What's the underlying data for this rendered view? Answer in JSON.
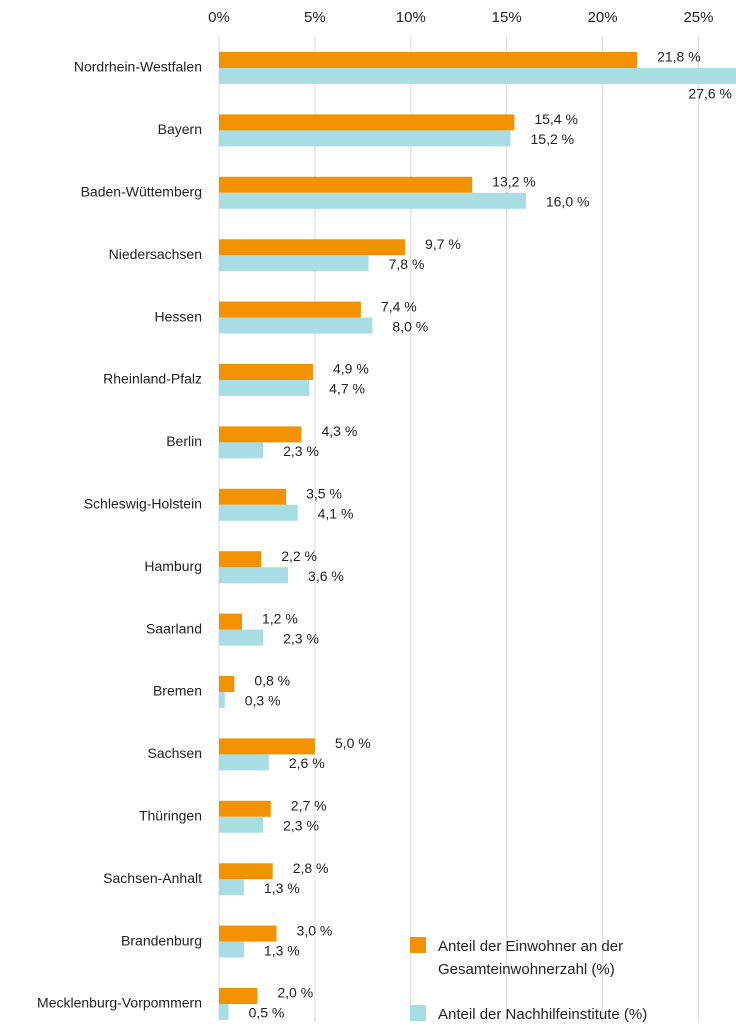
{
  "chart_data": {
    "type": "hbar",
    "categories": [
      "Nordrhein-Westfalen",
      "Bayern",
      "Baden-Wüttemberg",
      "Niedersachsen",
      "Hessen",
      "Rheinland-Pfalz",
      "Berlin",
      "Schleswig-Holstein",
      "Hamburg",
      "Saarland",
      "Bremen",
      "Sachsen",
      "Thüringen",
      "Sachsen-Anhalt",
      "Brandenburg",
      "Mecklenburg-Vorpommern"
    ],
    "series": [
      {
        "name": "Anteil der Einwohner an der Gesamteinwohnerzahl (%)",
        "color": "#f39200",
        "values": [
          21.8,
          15.4,
          13.2,
          9.7,
          7.4,
          4.9,
          4.3,
          3.5,
          2.2,
          1.2,
          0.8,
          5.0,
          2.7,
          2.8,
          3.0,
          2.0
        ],
        "value_labels": [
          "21,8 %",
          "15,4 %",
          "13,2 %",
          "9,7 %",
          "7,4 %",
          "4,9 %",
          "4,3 %",
          "3,5 %",
          "2,2 %",
          "1,2 %",
          "0,8 %",
          "5,0 %",
          "2,7 %",
          "2,8 %",
          "3,0 %",
          "2,0 %"
        ]
      },
      {
        "name": "Anteil der Nachhilfeinstitute (%)",
        "color": "#a8dde3",
        "values": [
          27.6,
          15.2,
          16.0,
          7.8,
          8.0,
          4.7,
          2.3,
          4.1,
          3.6,
          2.3,
          0.3,
          2.6,
          2.3,
          1.3,
          1.3,
          0.5
        ],
        "value_labels": [
          "27,6 %",
          "15,2 %",
          "16,0 %",
          "7,8 %",
          "8,0 %",
          "4,7 %",
          "2,3 %",
          "4,1 %",
          "3,6 %",
          "2,3 %",
          "0,3 %",
          "2,6 %",
          "2,3 %",
          "1,3 %",
          "1,3 %",
          "0,5 %"
        ]
      }
    ],
    "xlim": [
      0,
      26.8
    ],
    "xticks": [
      {
        "value": 0,
        "label": "0%"
      },
      {
        "value": 5,
        "label": "5%"
      },
      {
        "value": 10,
        "label": "10%"
      },
      {
        "value": 15,
        "label": "15%"
      },
      {
        "value": 20,
        "label": "20%"
      },
      {
        "value": 25,
        "label": "25%"
      }
    ],
    "grid": true
  }
}
